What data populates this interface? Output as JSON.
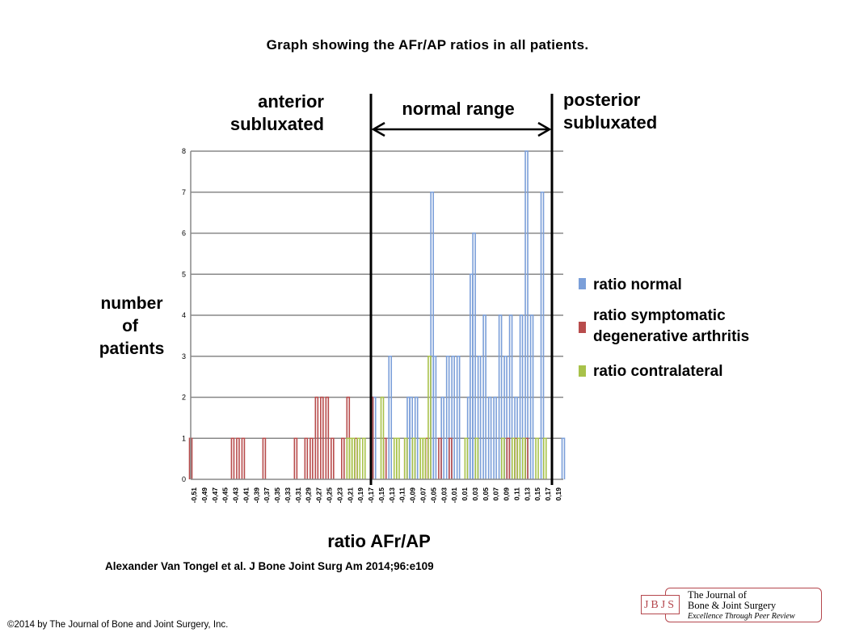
{
  "page": {
    "title": "Graph showing the AFr/AP ratios in all patients.",
    "citation": "Alexander Van Tongel et al. J Bone Joint Surg Am 2014;96:e109",
    "copyright": "©2014 by The Journal of Bone and Joint Surgery, Inc.",
    "logo": {
      "abbr": "JBJS",
      "line1": "The Journal of",
      "line2": "Bone & Joint Surgery",
      "tagline": "Excellence Through Peer Review"
    }
  },
  "annotations": {
    "left_region": [
      "anterior",
      "subluxated"
    ],
    "middle_region": "normal range",
    "right_region": [
      "posterior",
      "subluxated"
    ]
  },
  "chart_data": {
    "type": "bar",
    "xlabel": "ratio AFr/AP",
    "ylabel": [
      "number",
      "of",
      "patients"
    ],
    "ylim": [
      0,
      8
    ],
    "yticks": [
      0,
      1,
      2,
      3,
      4,
      5,
      6,
      7,
      8
    ],
    "xtick_labels": [
      "-0,51",
      "-0,49",
      "-0,47",
      "-0,45",
      "-0,43",
      "-0,41",
      "-0,39",
      "-0,37",
      "-0,35",
      "-0,33",
      "-0,31",
      "-0,29",
      "-0,27",
      "-0,25",
      "-0,23",
      "-0,21",
      "-0,19",
      "-0,17",
      "-0,15",
      "-0,13",
      "-0,11",
      "-0,09",
      "-0,07",
      "-0,05",
      "-0,03",
      "-0,01",
      "0,01",
      "0,03",
      "0,05",
      "0,07",
      "0,09",
      "0,11",
      "0,13",
      "0,15",
      "0,17",
      "0,19"
    ],
    "x_range": [
      -0.51,
      0.2
    ],
    "grid": true,
    "legend_position": "right",
    "normal_range": [
      -0.17,
      0.18
    ],
    "series": [
      {
        "name": "ratio normal",
        "color": "#7b9fd9",
        "x": [
          -0.16,
          -0.13,
          -0.095,
          -0.09,
          -0.08,
          -0.05,
          -0.045,
          -0.03,
          -0.02,
          -0.01,
          0.0,
          0.02,
          0.025,
          0.03,
          0.04,
          0.05,
          0.06,
          0.07,
          0.08,
          0.09,
          0.1,
          0.11,
          0.12,
          0.13,
          0.14,
          0.16,
          0.2
        ],
        "values": [
          2,
          3,
          2,
          2,
          2,
          7,
          3,
          2,
          3,
          3,
          3,
          2,
          5,
          6,
          3,
          4,
          2,
          2,
          4,
          3,
          4,
          2,
          4,
          8,
          4,
          7,
          1
        ]
      },
      {
        "name": "ratio symptomatic degenerative arthritis",
        "color": "#b84c4c",
        "x": [
          -0.51,
          -0.43,
          -0.42,
          -0.41,
          -0.37,
          -0.31,
          -0.29,
          -0.28,
          -0.27,
          -0.26,
          -0.25,
          -0.24,
          -0.22,
          -0.21,
          -0.195,
          -0.165,
          -0.14,
          -0.1,
          -0.06,
          -0.035,
          -0.015,
          0.095,
          0.11,
          0.13
        ],
        "values": [
          1,
          1,
          1,
          1,
          1,
          1,
          1,
          1,
          2,
          2,
          2,
          1,
          1,
          2,
          1,
          2,
          1,
          1,
          1,
          1,
          1,
          1,
          1,
          1
        ]
      },
      {
        "name": "ratio contralateral",
        "color": "#a8c24a",
        "x": [
          -0.21,
          -0.205,
          -0.2,
          -0.19,
          -0.18,
          -0.145,
          -0.12,
          -0.115,
          -0.1,
          -0.085,
          -0.07,
          -0.065,
          -0.055,
          0.015,
          0.035,
          0.085,
          0.105,
          0.115,
          0.125,
          0.15,
          0.165
        ],
        "values": [
          1,
          1,
          1,
          1,
          1,
          2,
          1,
          1,
          1,
          1,
          1,
          1,
          3,
          1,
          1,
          1,
          1,
          1,
          1,
          1,
          1
        ]
      }
    ]
  }
}
